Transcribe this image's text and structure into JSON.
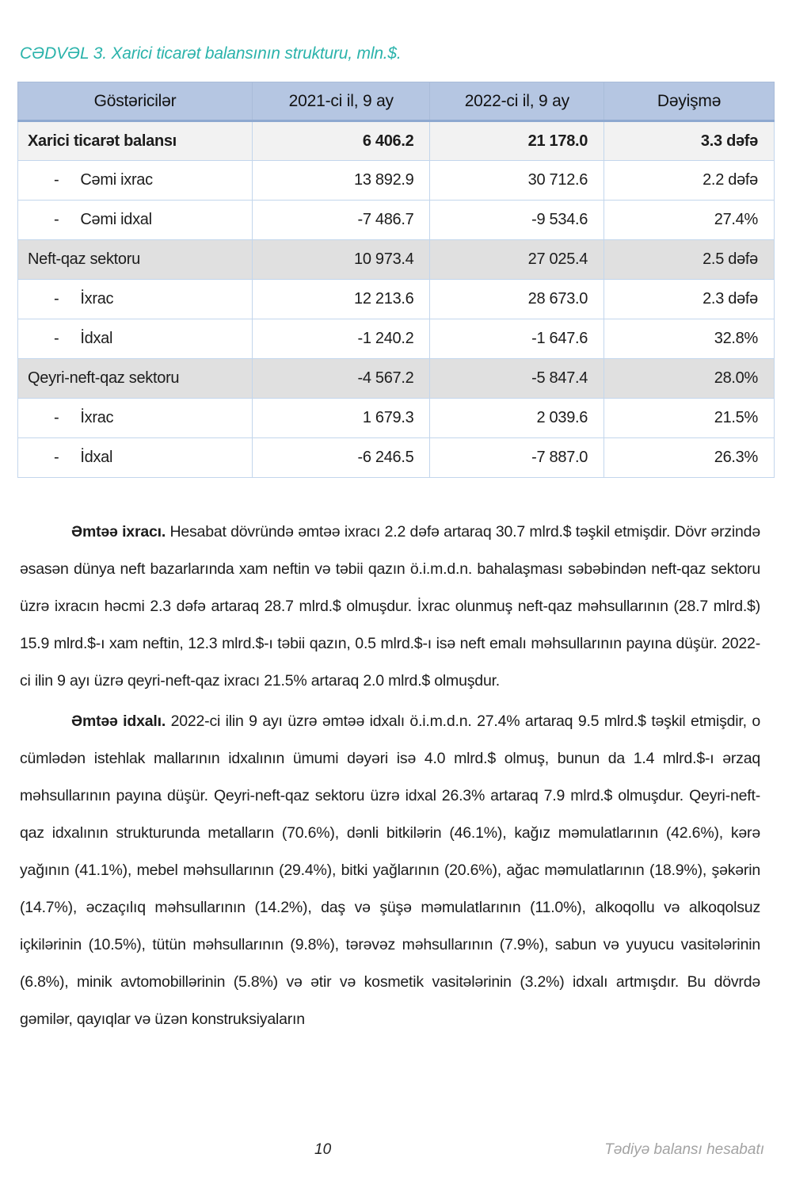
{
  "colors": {
    "accent_teal": "#2bb3ab",
    "header_bg": "#b5c6e2",
    "header_border": "#8ea9d0",
    "grid_line": "#c3d6ec",
    "total_row_bg": "#f2f2f2",
    "section_row_bg": "#e0e0e0",
    "footer_gray": "#a3a3a3"
  },
  "caption": "CƏDVƏL 3. Xarici ticarət balansının strukturu, mln.$.",
  "table": {
    "dash_marker": "-",
    "headers": [
      "Göstəricilər",
      "2021-ci il, 9 ay",
      "2022-ci il, 9 ay",
      "Dəyişmə"
    ],
    "rows": [
      {
        "label": "Xarici ticarət balansı",
        "indent": false,
        "style": "total",
        "values": [
          "6 406.2",
          "21 178.0",
          "3.3 dəfə"
        ]
      },
      {
        "label": "Cəmi ixrac",
        "indent": true,
        "style": "plain",
        "values": [
          "13 892.9",
          "30 712.6",
          "2.2 dəfə"
        ]
      },
      {
        "label": "Cəmi idxal",
        "indent": true,
        "style": "plain",
        "values": [
          "-7 486.7",
          "-9 534.6",
          "27.4%"
        ]
      },
      {
        "label": "Neft-qaz sektoru",
        "indent": false,
        "style": "section",
        "values": [
          "10 973.4",
          "27 025.4",
          "2.5 dəfə"
        ]
      },
      {
        "label": "İxrac",
        "indent": true,
        "style": "plain",
        "values": [
          "12 213.6",
          "28 673.0",
          "2.3 dəfə"
        ]
      },
      {
        "label": "İdxal",
        "indent": true,
        "style": "plain",
        "values": [
          "-1 240.2",
          "-1 647.6",
          "32.8%"
        ]
      },
      {
        "label": "Qeyri-neft-qaz sektoru",
        "indent": false,
        "style": "section",
        "values": [
          "-4 567.2",
          "-5 847.4",
          "28.0%"
        ]
      },
      {
        "label": "İxrac",
        "indent": true,
        "style": "plain",
        "values": [
          "1 679.3",
          "2 039.6",
          "21.5%"
        ]
      },
      {
        "label": "İdxal",
        "indent": true,
        "style": "plain",
        "values": [
          "-6 246.5",
          "-7 887.0",
          "26.3%"
        ]
      }
    ]
  },
  "paragraphs": [
    {
      "lead": "Əmtəə ixracı.",
      "text": "Hesabat dövründə əmtəə ixracı 2.2 dəfə artaraq 30.7 mlrd.$ təşkil etmişdir. Dövr ərzində əsasən dünya neft bazarlarında xam neftin və təbii qazın ö.i.m.d.n. bahalaşması səbəbindən neft-qaz sektoru üzrə ixracın həcmi 2.3 dəfə artaraq 28.7 mlrd.$ olmuşdur. İxrac olunmuş neft-qaz məhsullarının (28.7 mlrd.$) 15.9 mlrd.$-ı xam neftin, 12.3 mlrd.$-ı təbii qazın, 0.5 mlrd.$-ı isə neft emalı məhsullarının payına düşür. 2022-ci ilin 9 ayı üzrə qeyri-neft-qaz ixracı 21.5% artaraq 2.0 mlrd.$ olmuşdur."
    },
    {
      "lead": "Əmtəə idxalı.",
      "text": "2022-ci ilin 9 ayı üzrə əmtəə idxalı ö.i.m.d.n. 27.4% artaraq 9.5 mlrd.$ təşkil etmişdir, o cümlədən istehlak mallarının idxalının ümumi dəyəri isə 4.0 mlrd.$ olmuş, bunun da 1.4 mlrd.$-ı ərzaq məhsullarının payına düşür. Qeyri-neft-qaz sektoru üzrə idxal 26.3% artaraq 7.9 mlrd.$ olmuşdur. Qeyri-neft-qaz idxalının strukturunda metalların (70.6%), dənli bitkilərin (46.1%), kağız məmulatlarının (42.6%), kərə yağının (41.1%), mebel məhsullarının (29.4%), bitki yağlarının (20.6%), ağac məmulatlarının (18.9%), şəkərin (14.7%), əczaçılıq məhsullarının (14.2%), daş və şüşə məmulatlarının (11.0%), alkoqollu və alkoqolsuz içkilərinin (10.5%), tütün məhsullarının (9.8%), tərəvəz məhsullarının (7.9%), sabun və yuyucu vasitələrinin (6.8%), minik avtomobillərinin (5.8%) və ətir və kosmetik vasitələrinin (3.2%) idxalı artmışdır. Bu dövrdə gəmilər, qayıqlar və üzən konstruksiyaların"
    }
  ],
  "footer": {
    "page_number": "10",
    "right_text": "Tədiyə balansı hesabatı"
  }
}
